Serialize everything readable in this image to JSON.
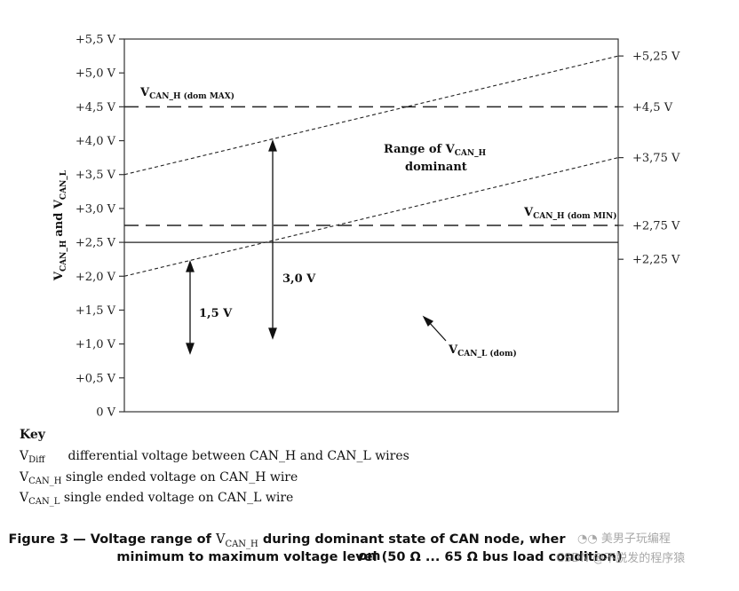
{
  "chart_data": {
    "type": "line",
    "ylabel_main": "V",
    "ylabel_sub1": "CAN_H",
    "ylabel_mid": "and V",
    "ylabel_sub2": "CAN_L",
    "ylim": [
      0,
      5.5
    ],
    "xlim": [
      0,
      1
    ],
    "left_ticks": [
      "0 V",
      "+0,5 V",
      "+1,0 V",
      "+1,5 V",
      "+2,0 V",
      "+2,5 V",
      "+3,0 V",
      "+3,5 V",
      "+4,0 V",
      "+4,5 V",
      "+5,0 V",
      "+5,5 V"
    ],
    "left_tick_values": [
      0,
      0.5,
      1.0,
      1.5,
      2.0,
      2.5,
      3.0,
      3.5,
      4.0,
      4.5,
      5.0,
      5.5
    ],
    "right_ticks": [
      {
        "label": "+5,25 V",
        "value": 5.25
      },
      {
        "label": "+4,5 V",
        "value": 4.5
      },
      {
        "label": "+3,75 V",
        "value": 3.75
      },
      {
        "label": "+2,75 V",
        "value": 2.75
      },
      {
        "label": "+2,25 V",
        "value": 2.25
      }
    ],
    "series": [
      {
        "style": "dotted",
        "x": [
          0,
          1
        ],
        "y": [
          3.5,
          5.25
        ]
      },
      {
        "style": "dotted",
        "x": [
          0,
          1
        ],
        "y": [
          2.0,
          3.75
        ]
      },
      {
        "name": "V CAN_H (dom MAX)",
        "style": "dashed",
        "x": [
          0,
          1
        ],
        "y": [
          4.5,
          4.5
        ]
      },
      {
        "name": "V CAN_H (dom MIN)",
        "style": "dashed",
        "x": [
          0,
          1
        ],
        "y": [
          2.75,
          2.75
        ]
      },
      {
        "style": "solid",
        "x": [
          0,
          1
        ],
        "y": [
          2.5,
          2.5
        ]
      }
    ],
    "annotations": {
      "dom_max": {
        "main": "V",
        "sub": "CAN_H (dom MAX)"
      },
      "dom_min": {
        "main": "V",
        "sub": "CAN_H (dom MIN)"
      },
      "range_line1_main": "Range of V",
      "range_line1_sub": "CAN_H",
      "range_line2": "dominant",
      "v_can_l": {
        "main": "V",
        "sub": "CAN_L (dom)"
      },
      "arrow_3v": {
        "label": "3,0 V",
        "from": 1.1,
        "to": 4.0
      },
      "arrow_1_5v": {
        "label": "1,5 V",
        "from": 0.9,
        "to": 2.2
      }
    }
  },
  "key": {
    "title": "Key",
    "rows": [
      {
        "sym": "V",
        "sub": "Diff",
        "text": "differential voltage between CAN_H and CAN_L wires"
      },
      {
        "sym": "V",
        "sub": "CAN_H",
        "text": "single ended voltage on CAN_H wire"
      },
      {
        "sym": "V",
        "sub": "CAN_L",
        "text": "single ended voltage on CAN_L wire"
      }
    ]
  },
  "caption": {
    "line1_a": "Figure 3 — Voltage range of ",
    "line1_sym": "V",
    "line1_sub": "CAN_H",
    "line1_b": " during dominant state of CAN node, wher",
    "line1_c": "om",
    "line2": "minimum to maximum voltage level (50 Ω ... 65 Ω bus load condition)"
  },
  "watermark": {
    "line1": "美男子玩编程",
    "line2": "CSDN @不脱发的程序猿"
  }
}
